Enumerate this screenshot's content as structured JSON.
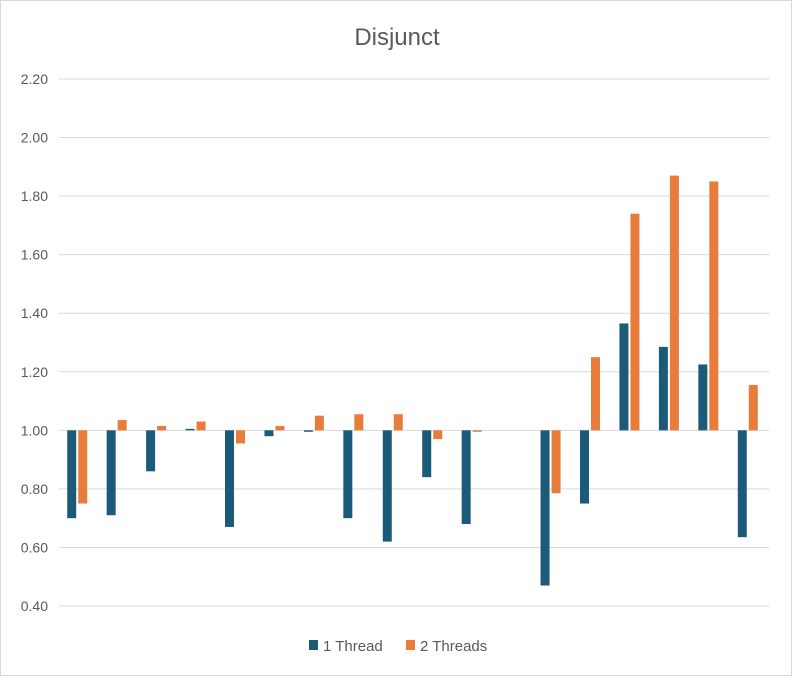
{
  "chart_data": {
    "type": "bar",
    "title": "Disjunct",
    "xlabel": "",
    "ylabel": "",
    "ylim": [
      0.4,
      2.2
    ],
    "baseline": 1.0,
    "y_ticks": [
      "0.40",
      "0.60",
      "0.80",
      "1.00",
      "1.20",
      "1.40",
      "1.60",
      "1.80",
      "2.00",
      "2.20"
    ],
    "categories": [
      "",
      "",
      "",
      "",
      "",
      "",
      "",
      "",
      "",
      "",
      "",
      "",
      "",
      "",
      "",
      "",
      "",
      ""
    ],
    "series": [
      {
        "name": "1 Thread",
        "color": "#1b5a79",
        "values": [
          0.7,
          0.71,
          0.86,
          1.005,
          0.67,
          0.98,
          0.995,
          0.7,
          0.62,
          0.84,
          0.68,
          null,
          0.47,
          0.75,
          1.365,
          1.285,
          1.225,
          0.635
        ]
      },
      {
        "name": "2 Threads",
        "color": "#e87c3a",
        "values": [
          0.75,
          1.035,
          1.015,
          1.03,
          0.955,
          1.015,
          1.05,
          1.055,
          1.055,
          0.97,
          0.995,
          null,
          0.785,
          1.25,
          1.74,
          1.87,
          1.85,
          1.155
        ]
      }
    ],
    "legend": "bottom",
    "grid": true
  }
}
